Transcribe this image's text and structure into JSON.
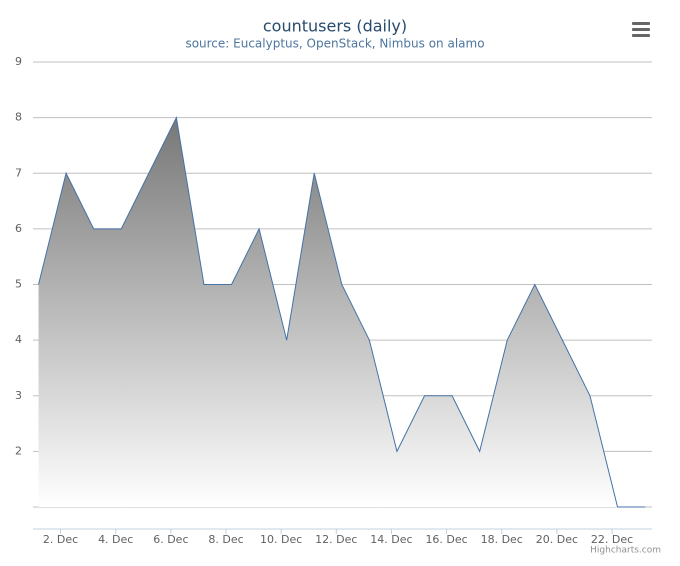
{
  "chart_data": {
    "type": "area",
    "title": "countusers (daily)",
    "subtitle": "source: Eucalyptus, OpenStack, Nimbus on alamo",
    "credits": "Highcharts.com",
    "x": [
      1.2,
      2.2,
      3.2,
      4.2,
      5.2,
      6.2,
      7.2,
      8.2,
      9.2,
      10.2,
      11.2,
      12.2,
      13.2,
      14.2,
      15.2,
      16.2,
      17.2,
      18.2,
      19.2,
      20.2,
      21.2,
      22.2,
      23.2
    ],
    "series": [
      {
        "name": "countusers",
        "color": "#4572a7",
        "values": [
          5,
          7,
          6,
          6,
          7,
          8,
          5,
          5,
          6,
          4,
          7,
          5,
          4,
          2,
          3,
          3,
          2,
          4,
          5,
          4,
          3,
          1,
          1
        ]
      }
    ],
    "xlim": [
      1.0,
      23.45
    ],
    "xticks": [
      {
        "value": 2,
        "label": "2. Dec"
      },
      {
        "value": 4,
        "label": "4. Dec"
      },
      {
        "value": 6,
        "label": "6. Dec"
      },
      {
        "value": 8,
        "label": "8. Dec"
      },
      {
        "value": 10,
        "label": "10. Dec"
      },
      {
        "value": 12,
        "label": "12. Dec"
      },
      {
        "value": 14,
        "label": "14. Dec"
      },
      {
        "value": 16,
        "label": "16. Dec"
      },
      {
        "value": 18,
        "label": "18. Dec"
      },
      {
        "value": 20,
        "label": "20. Dec"
      },
      {
        "value": 22,
        "label": "22. Dec"
      }
    ],
    "ylim": [
      1,
      9
    ],
    "yticks": [
      2,
      3,
      4,
      5,
      6,
      7,
      8,
      9
    ],
    "grid": true
  }
}
